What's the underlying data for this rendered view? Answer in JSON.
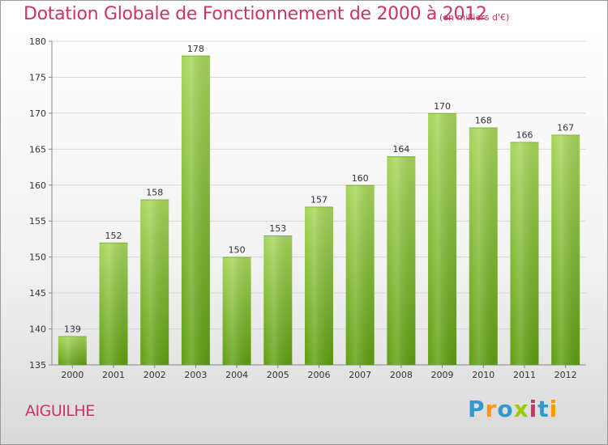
{
  "header": {
    "title": "Dotation Globale de Fonctionnement de 2000 à 2012",
    "subtitle": "(en milliers d'€)"
  },
  "footer": {
    "commune": "AIGUILHE",
    "logo_text": "Proxiti"
  },
  "colors": {
    "accent": "#cc3366",
    "bar_light": "#a6d65a",
    "bar_dark": "#5e9e10",
    "grid": "#d6d6d6",
    "axis": "#888888"
  },
  "chart_data": {
    "type": "bar",
    "title": "Dotation Globale de Fonctionnement de 2000 à 2012",
    "subtitle": "(en milliers d'€)",
    "xlabel": "",
    "ylabel": "",
    "categories": [
      "2000",
      "2001",
      "2002",
      "2003",
      "2004",
      "2005",
      "2006",
      "2007",
      "2008",
      "2009",
      "2010",
      "2011",
      "2012"
    ],
    "values": [
      139,
      152,
      158,
      178,
      150,
      153,
      157,
      160,
      164,
      170,
      168,
      166,
      167
    ],
    "ylim": [
      135,
      180
    ],
    "yticks": [
      135,
      140,
      145,
      150,
      155,
      160,
      165,
      170,
      175,
      180
    ],
    "grid": true,
    "legend": "none",
    "data_labels": true
  }
}
